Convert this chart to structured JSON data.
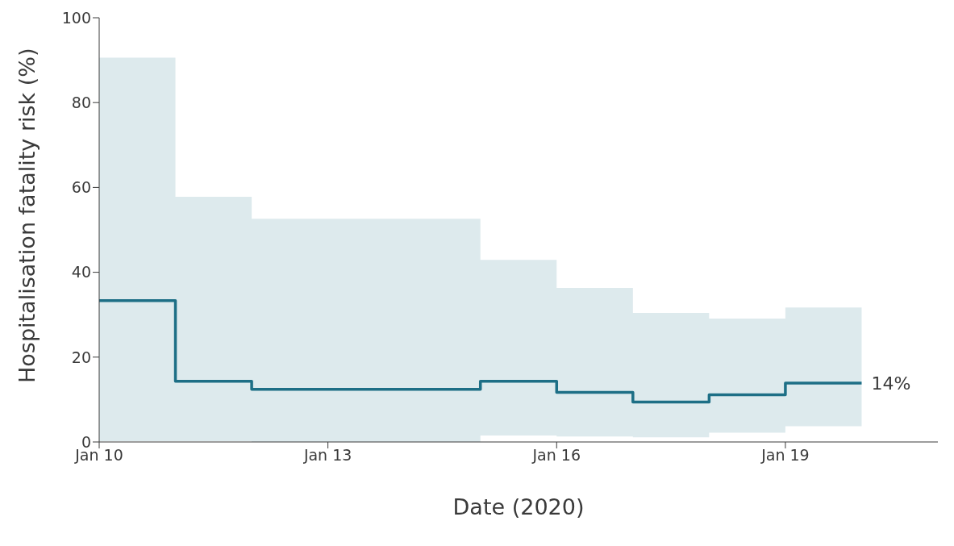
{
  "chart_data": {
    "type": "step",
    "xlabel": "Date (2020)",
    "ylabel": "Hospitalisation fatality risk (%)",
    "x": [
      "2020-01-10",
      "2020-01-11",
      "2020-01-12",
      "2020-01-13",
      "2020-01-14",
      "2020-01-15",
      "2020-01-16",
      "2020-01-17",
      "2020-01-18",
      "2020-01-19",
      "2020-01-20"
    ],
    "series": [
      {
        "color": "#1d6f86",
        "values": [
          33.3,
          14.3,
          12.4,
          12.4,
          12.4,
          14.3,
          11.7,
          9.4,
          11.1,
          13.9,
          13.9
        ],
        "lower": [
          0.2,
          0.2,
          0,
          0,
          0,
          1.5,
          1.3,
          1.1,
          2.2,
          3.7,
          3.7
        ],
        "upper": [
          90.6,
          57.8,
          52.6,
          52.6,
          52.6,
          42.9,
          36.3,
          30.4,
          29.1,
          31.7,
          31.7
        ]
      }
    ],
    "xlim": [
      "2020-01-10",
      "2020-01-21"
    ],
    "xticks": [
      {
        "value": "2020-01-10",
        "label": "Jan 10"
      },
      {
        "value": "2020-01-13",
        "label": "Jan 13"
      },
      {
        "value": "2020-01-16",
        "label": "Jan 16"
      },
      {
        "value": "2020-01-19",
        "label": "Jan 19"
      }
    ],
    "ylim": [
      0,
      100
    ],
    "yticks": [
      0,
      20,
      40,
      60,
      80,
      100
    ],
    "grid": false,
    "legend": false,
    "line_style": "solid",
    "marker": "none",
    "annotations": [
      {
        "text": "14%",
        "x": "2020-01-20",
        "y": 13.9
      }
    ]
  }
}
